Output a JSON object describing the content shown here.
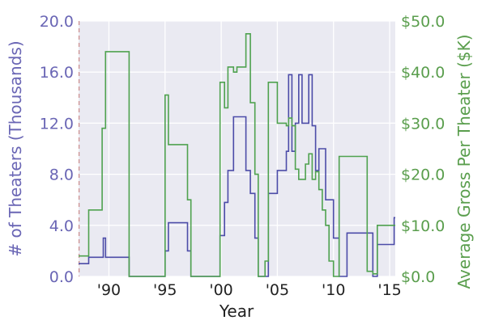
{
  "chart_data": {
    "type": "line",
    "step": true,
    "xlabel": "Year",
    "ylabel_left": "# of Theaters (Thousands)",
    "ylabel_right": "Average Gross Per Theater ($K)",
    "xlim": [
      1987.3,
      2015.5
    ],
    "ylim_left": [
      0,
      20
    ],
    "ylim_right": [
      0,
      50
    ],
    "grid": true,
    "x_ticks": [
      1990,
      1995,
      2000,
      2005,
      2010,
      2015
    ],
    "x_tick_labels": [
      "'90",
      "'95",
      "'00",
      "'05",
      "'10",
      "'15"
    ],
    "y_left_ticks": [
      0,
      4,
      8,
      12,
      16,
      20
    ],
    "y_left_tick_labels": [
      "0.0",
      "4.0",
      "8.0",
      "12.0",
      "16.0",
      "20.0"
    ],
    "y_right_ticks": [
      0,
      10,
      20,
      30,
      40,
      50
    ],
    "y_right_tick_labels": [
      "$0.0",
      "$10.0",
      "$20.0",
      "$30.0",
      "$40.0",
      "$50.0"
    ],
    "reference_line": {
      "x": 1987.3,
      "style": "dashed"
    },
    "series": [
      {
        "axis": "left",
        "color": "#4c4ca8",
        "x": [
          1987.3,
          1988.2,
          1989.5,
          1989.7,
          1990.0,
          1991.8,
          1992.0,
          1995.0,
          1995.3,
          1997.0,
          1997.3,
          1999.9,
          2000.3,
          2000.6,
          2001.1,
          2001.4,
          2002.2,
          2002.6,
          2003.0,
          2003.3,
          2003.9,
          2004.2,
          2005.0,
          2005.8,
          2006.0,
          2006.3,
          2006.6,
          2006.9,
          2007.2,
          2007.5,
          2007.8,
          2008.1,
          2008.4,
          2008.7,
          2009.0,
          2009.3,
          2009.6,
          2010.0,
          2010.5,
          2011.2,
          2013.0,
          2013.5,
          2013.9,
          2015.4
        ],
        "y": [
          1.0,
          1.5,
          3.0,
          1.5,
          1.5,
          0.0,
          0.0,
          2.0,
          4.2,
          2.0,
          0.0,
          3.2,
          5.8,
          8.3,
          12.5,
          12.5,
          8.3,
          6.5,
          3.0,
          0.0,
          0.0,
          6.5,
          8.3,
          9.8,
          15.8,
          9.8,
          12.0,
          15.8,
          12.0,
          12.0,
          15.8,
          11.8,
          8.3,
          10.0,
          10.0,
          6.0,
          6.0,
          3.0,
          0.0,
          3.4,
          3.4,
          0.0,
          2.5,
          4.6
        ]
      },
      {
        "axis": "right",
        "color": "#4fa24f",
        "x": [
          1987.3,
          1988.2,
          1988.6,
          1989.4,
          1989.7,
          1991.8,
          1992.0,
          1995.0,
          1995.3,
          1997.0,
          1997.3,
          1999.9,
          2000.3,
          2000.6,
          2001.1,
          2001.4,
          2002.2,
          2002.6,
          2003.0,
          2003.3,
          2003.9,
          2004.2,
          2005.0,
          2005.8,
          2006.0,
          2006.3,
          2006.6,
          2006.9,
          2007.2,
          2007.5,
          2007.8,
          2008.1,
          2008.4,
          2008.7,
          2009.0,
          2009.3,
          2009.6,
          2010.0,
          2010.5,
          2011.2,
          2013.0,
          2013.5,
          2013.9,
          2015.4
        ],
        "y": [
          4.0,
          13.0,
          13.0,
          29.0,
          44.0,
          0.0,
          0.0,
          35.5,
          25.8,
          15.0,
          0.0,
          38.0,
          33.0,
          41.0,
          40.0,
          41.0,
          47.5,
          34.0,
          20.0,
          0.0,
          3.0,
          38.0,
          30.0,
          29.5,
          31.0,
          29.5,
          21.0,
          19.0,
          19.0,
          22.0,
          24.0,
          19.0,
          20.5,
          17.0,
          13.0,
          10.0,
          3.0,
          0.0,
          23.5,
          23.5,
          1.0,
          0.5,
          10.0,
          10.0
        ]
      }
    ]
  }
}
